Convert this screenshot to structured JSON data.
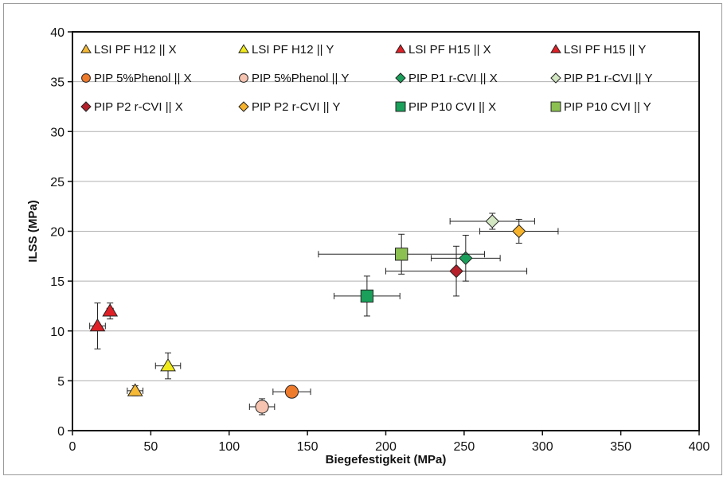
{
  "chart_data": {
    "type": "scatter",
    "xlabel": "Biegefestigkeit (MPa)",
    "ylabel": "ILSS  (MPa)",
    "xlim": [
      0,
      400
    ],
    "ylim": [
      0,
      40
    ],
    "xticks": [
      "0",
      "50",
      "100",
      "150",
      "200",
      "250",
      "300",
      "350",
      "400"
    ],
    "yticks": [
      "0",
      "5",
      "10",
      "15",
      "20",
      "25",
      "30",
      "35",
      "40"
    ],
    "grid": "horizontal",
    "legend_position": "top",
    "series": [
      {
        "name": "LSI  PF H12 || X",
        "marker": "triangle",
        "color": "#f5b935",
        "points": [
          {
            "x": 40,
            "y": 4,
            "xerr": 5,
            "yerr": 0.5
          }
        ]
      },
      {
        "name": "LSI PF  H12 || Y",
        "marker": "triangle",
        "color": "#f1ea1b",
        "points": [
          {
            "x": 61,
            "y": 6.5,
            "xerr": 8,
            "yerr": 1.3
          }
        ]
      },
      {
        "name": "LSI PF  H15 || X",
        "marker": "triangle",
        "color": "#e02027",
        "points": [
          {
            "x": 16,
            "y": 10.5,
            "xerr": 5,
            "yerr": 2.3
          }
        ]
      },
      {
        "name": "LSI PF  H15 || Y",
        "marker": "triangle",
        "color": "#e02027",
        "points": [
          {
            "x": 24,
            "y": 12,
            "xerr": 2,
            "yerr": 0.8
          }
        ]
      },
      {
        "name": "PIP 5%Phenol || X",
        "marker": "circle",
        "color": "#ee7a2c",
        "points": [
          {
            "x": 140,
            "y": 3.9,
            "xerr": 12,
            "yerr": 0.3
          }
        ]
      },
      {
        "name": "PIP 5%Phenol || Y",
        "marker": "circle",
        "color": "#f6c3b0",
        "points": [
          {
            "x": 121,
            "y": 2.4,
            "xerr": 8,
            "yerr": 0.8
          }
        ]
      },
      {
        "name": "PIP P1 r-CVI || X",
        "marker": "diamond",
        "color": "#1aa05a",
        "points": [
          {
            "x": 251,
            "y": 17.3,
            "xerr": 22,
            "yerr": 2.3
          }
        ]
      },
      {
        "name": "PIP P1 r-CVI || Y",
        "marker": "diamond",
        "color": "#d3e7c3",
        "points": [
          {
            "x": 268,
            "y": 21,
            "xerr": 27,
            "yerr": 0.8
          }
        ]
      },
      {
        "name": "PIP P2 r-CVI || X",
        "marker": "diamond",
        "color": "#b5202a",
        "points": [
          {
            "x": 245,
            "y": 16,
            "xerr": 45,
            "yerr": 2.5
          }
        ]
      },
      {
        "name": "PIP P2 r-CVI || Y",
        "marker": "diamond",
        "color": "#f7b32b",
        "points": [
          {
            "x": 285,
            "y": 20,
            "xerr": 25,
            "yerr": 1.2
          }
        ]
      },
      {
        "name": "PIP P10 CVI || X",
        "marker": "square",
        "color": "#1aa05a",
        "points": [
          {
            "x": 188,
            "y": 13.5,
            "xerr": 21,
            "yerr": 2
          }
        ]
      },
      {
        "name": "PIP P10 CVI || Y",
        "marker": "square",
        "color": "#8cc152",
        "points": [
          {
            "x": 210,
            "y": 17.7,
            "xerr": 53,
            "yerr": 2
          }
        ]
      }
    ]
  }
}
